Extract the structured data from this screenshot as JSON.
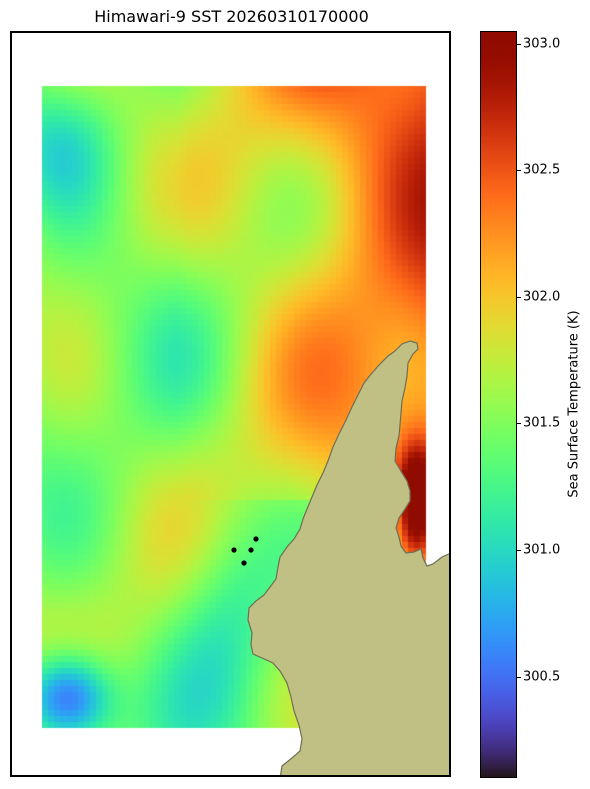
{
  "chart_data": {
    "type": "heatmap",
    "title": "Himawari-9 SST 20260310170000",
    "colorbar": {
      "label": "Sea Surface Temperature (K)",
      "range": [
        300.1,
        303.05
      ],
      "ticks": [
        300.5,
        301.0,
        301.5,
        302.0,
        302.5,
        303.0
      ],
      "tick_labels": [
        "300.5",
        "301.0",
        "301.5",
        "302.0",
        "302.5",
        "303.0"
      ],
      "colormap": "turbo"
    },
    "field_description": "warm (≈302.3–302.6 K) in the north-east, cooling to ≈301.3–301.6 K across the west and south, ≈301.0 K near the coast, a cold core (≈300.1–300.4 K) at the south-west corner and a hot strip (≈303 K) along the eastern coast",
    "land_color": "#c0c084",
    "coast_color": "#6e6e55",
    "station_markers": 4,
    "grid": false,
    "axes_ticks": false
  }
}
